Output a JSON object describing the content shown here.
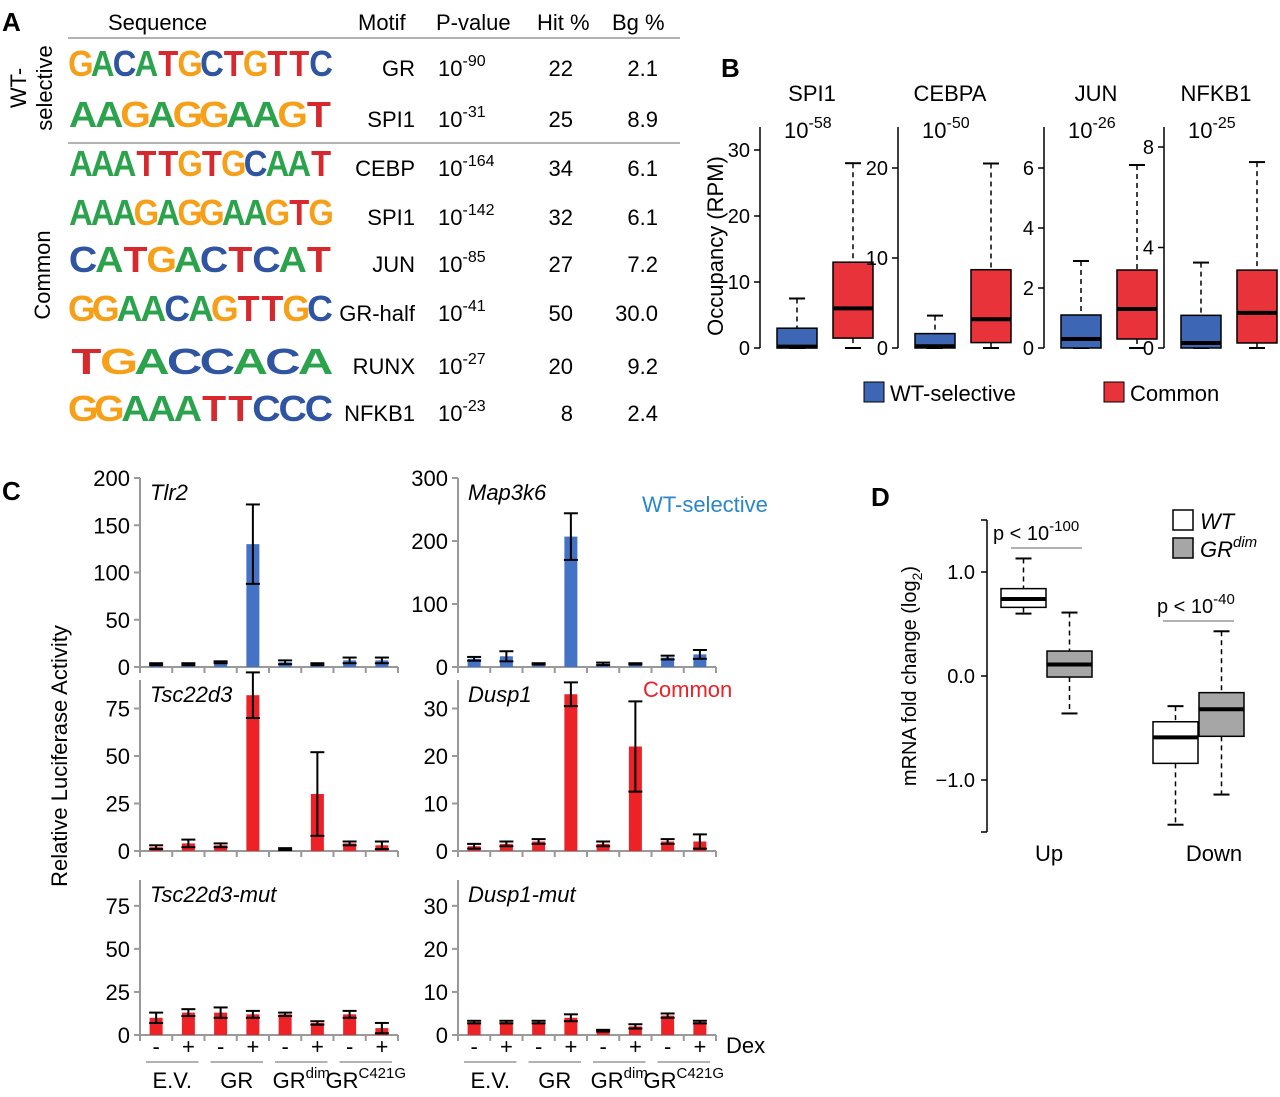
{
  "panel_letters": {
    "a": "A",
    "b": "B",
    "c": "C",
    "d": "D"
  },
  "colors": {
    "wt_selective_box": "#3d66b4",
    "common_box": "#e8333a",
    "bar_blue": "#4472c4",
    "bar_red": "#ec2227",
    "wt_selective_text": "#2c86c9",
    "common_text": "#ec2227",
    "gr_dim_box": "#a6a6a6",
    "wt_box": "#ffffff",
    "axis": "#999999",
    "logo_A": "#2ba24c",
    "logo_C": "#2e54a2",
    "logo_G": "#f6a01a",
    "logo_T": "#d7282e"
  },
  "panel_a": {
    "headers": {
      "sequence": "Sequence",
      "motif": "Motif",
      "pvalue": "P-value",
      "hit": "Hit %",
      "bg": "Bg %"
    },
    "group_labels": {
      "wt_selective_top": "WT-",
      "wt_selective_bottom": "selective",
      "common": "Common"
    },
    "rows": [
      {
        "logo": "GACATGCTGTTC",
        "motif": "GR",
        "p_base": "10",
        "p_exp": "-90",
        "hit": "22",
        "bg": "2.1"
      },
      {
        "logo": "AAGAGGAAGT",
        "motif": "SPI1",
        "p_base": "10",
        "p_exp": "-31",
        "hit": "25",
        "bg": "8.9"
      },
      {
        "logo": "AAATTGTGCAAT",
        "motif": "CEBP",
        "p_base": "10",
        "p_exp": "-164",
        "hit": "34",
        "bg": "6.1"
      },
      {
        "logo": "AAAGAGGAAGTG",
        "motif": "SPI1",
        "p_base": "10",
        "p_exp": "-142",
        "hit": "32",
        "bg": "6.1"
      },
      {
        "logo": "CATGACTCAT",
        "motif": "JUN",
        "p_base": "10",
        "p_exp": "-85",
        "hit": "27",
        "bg": "7.2"
      },
      {
        "logo": "GGAACAGTTGC",
        "motif": "GR-half",
        "p_base": "10",
        "p_exp": "-41",
        "hit": "50",
        "bg": "30.0"
      },
      {
        "logo": "TGACCACA",
        "motif": "RUNX",
        "p_base": "10",
        "p_exp": "-27",
        "hit": "20",
        "bg": "9.2"
      },
      {
        "logo": "GGAAATTCCC",
        "motif": "NFKB1",
        "p_base": "10",
        "p_exp": "-23",
        "hit": "8",
        "bg": "2.4"
      }
    ]
  },
  "chart_data": [
    {
      "id": "B",
      "type": "box",
      "ylabel": "Occupancy (RPM)",
      "legend": [
        "WT-selective",
        "Common"
      ],
      "legend_placement": "bottom",
      "subplots": [
        {
          "title": "SPI1",
          "p_base": "10",
          "p_exp": "-58",
          "ylim": [
            0,
            30
          ],
          "yticks": [
            0,
            10,
            20,
            30
          ],
          "boxes": [
            {
              "series": "WT-selective",
              "min": 0,
              "q1": 0,
              "median": 0.2,
              "q3": 3,
              "max": 7.5
            },
            {
              "series": "Common",
              "min": 0,
              "q1": 1.5,
              "median": 6,
              "q3": 13,
              "max": 28
            }
          ]
        },
        {
          "title": "CEBPA",
          "p_base": "10",
          "p_exp": "-50",
          "ylim": [
            0,
            20
          ],
          "yticks": [
            0,
            10,
            20
          ],
          "boxes": [
            {
              "series": "WT-selective",
              "min": 0,
              "q1": 0,
              "median": 0.2,
              "q3": 1.6,
              "max": 3.6
            },
            {
              "series": "Common",
              "min": 0,
              "q1": 0.6,
              "median": 3.2,
              "q3": 8.7,
              "max": 20.5
            }
          ]
        },
        {
          "title": "JUN",
          "p_base": "10",
          "p_exp": "-26",
          "ylim": [
            0,
            6
          ],
          "yticks": [
            0,
            2,
            4,
            6
          ],
          "boxes": [
            {
              "series": "WT-selective",
              "min": 0,
              "q1": 0,
              "median": 0.3,
              "q3": 1.1,
              "max": 2.9
            },
            {
              "series": "Common",
              "min": 0,
              "q1": 0.3,
              "median": 1.3,
              "q3": 2.6,
              "max": 6.1
            }
          ]
        },
        {
          "title": "NFKB1",
          "p_base": "10",
          "p_exp": "-25",
          "ylim": [
            0,
            8
          ],
          "yticks": [
            0,
            4,
            8
          ],
          "boxes": [
            {
              "series": "WT-selective",
              "min": 0,
              "q1": 0,
              "median": 0.2,
              "q3": 1.3,
              "max": 3.4
            },
            {
              "series": "Common",
              "min": 0,
              "q1": 0.2,
              "median": 1.4,
              "q3": 3.1,
              "max": 7.4
            }
          ]
        }
      ]
    },
    {
      "id": "C",
      "type": "bar",
      "ylabel": "Relative Luciferase Activity",
      "dex_label": "Dex",
      "dex_signs": [
        "-",
        "+",
        "-",
        "+",
        "-",
        "+",
        "-",
        "+"
      ],
      "groups": [
        {
          "base": "E.V.",
          "sup": ""
        },
        {
          "base": "GR",
          "sup": ""
        },
        {
          "base": "GR",
          "sup": "dim"
        },
        {
          "base": "GR",
          "sup": "C421G"
        }
      ],
      "annotations": {
        "wt_selective": "WT-selective",
        "common": "Common"
      },
      "subplots": [
        {
          "title": "Tlr2",
          "color": "blue",
          "ylim": [
            0,
            200
          ],
          "yticks": [
            0,
            50,
            100,
            150,
            200
          ],
          "values": [
            3,
            3,
            5,
            130,
            5,
            3,
            7,
            7
          ],
          "errors": [
            1,
            1,
            1,
            42,
            2,
            1,
            3,
            3
          ]
        },
        {
          "title": "Map3k6",
          "color": "blue",
          "ylim": [
            0,
            300
          ],
          "yticks": [
            0,
            100,
            200,
            300
          ],
          "values": [
            13,
            17,
            5,
            207,
            5,
            5,
            15,
            20
          ],
          "errors": [
            3,
            8,
            1,
            37,
            2,
            1,
            3,
            7
          ]
        },
        {
          "title": "Tsc22d3",
          "color": "red",
          "ylim": [
            0,
            90
          ],
          "yticks": [
            0,
            25,
            50,
            75
          ],
          "values": [
            2,
            4,
            3,
            82,
            1,
            30,
            4,
            3
          ],
          "errors": [
            1,
            2,
            1,
            12,
            0.5,
            22,
            1,
            2
          ]
        },
        {
          "title": "Dusp1",
          "color": "red",
          "ylim": [
            0,
            36
          ],
          "yticks": [
            0,
            10,
            20,
            30
          ],
          "values": [
            1,
            1.5,
            2,
            33,
            1.5,
            22,
            2,
            2
          ],
          "errors": [
            0.5,
            0.5,
            0.5,
            2.5,
            0.5,
            9.5,
            0.5,
            1.5
          ]
        },
        {
          "title": "Tsc22d3-mut",
          "color": "red",
          "ylim": [
            0,
            90
          ],
          "yticks": [
            0,
            25,
            50,
            75
          ],
          "values": [
            10,
            13,
            13,
            12,
            12,
            7,
            12,
            4
          ],
          "errors": [
            3,
            2,
            3,
            2,
            1,
            1,
            2,
            3
          ]
        },
        {
          "title": "Dusp1-mut",
          "color": "red",
          "ylim": [
            0,
            36
          ],
          "yticks": [
            0,
            10,
            20,
            30
          ],
          "values": [
            3,
            3,
            3,
            4,
            1,
            2,
            4.5,
            3
          ],
          "errors": [
            0.3,
            0.3,
            0.3,
            0.8,
            0.2,
            0.5,
            0.5,
            0.3
          ]
        }
      ]
    },
    {
      "id": "D",
      "type": "box",
      "ylabel": "mRNA fold change (log",
      "ylabel_sub": "2",
      "ylabel_end": ")",
      "ylim": [
        -1.5,
        1.5
      ],
      "yticks": [
        -1.0,
        0.0,
        1.0
      ],
      "ytick_labels": [
        "−1.0",
        "0.0",
        "1.0"
      ],
      "legend": [
        {
          "base": "WT",
          "sup": ""
        },
        {
          "base": "GR",
          "sup": "dim"
        }
      ],
      "legend_placement": "top-right",
      "groups": [
        {
          "label": "Up",
          "p_text": "p < 10",
          "p_exp": "-100",
          "boxes": [
            {
              "series": "WT",
              "min": 0.6,
              "q1": 0.66,
              "median": 0.74,
              "q3": 0.84,
              "max": 1.13
            },
            {
              "series": "GRdim",
              "min": -0.36,
              "q1": -0.01,
              "median": 0.11,
              "q3": 0.24,
              "max": 0.61
            }
          ]
        },
        {
          "label": "Down",
          "p_text": "p < 10",
          "p_exp": "-40",
          "boxes": [
            {
              "series": "WT",
              "min": -1.43,
              "q1": -0.84,
              "median": -0.59,
              "q3": -0.44,
              "max": -0.29
            },
            {
              "series": "GRdim",
              "min": -1.14,
              "q1": -0.58,
              "median": -0.32,
              "q3": -0.16,
              "max": 0.43
            }
          ]
        }
      ]
    }
  ]
}
